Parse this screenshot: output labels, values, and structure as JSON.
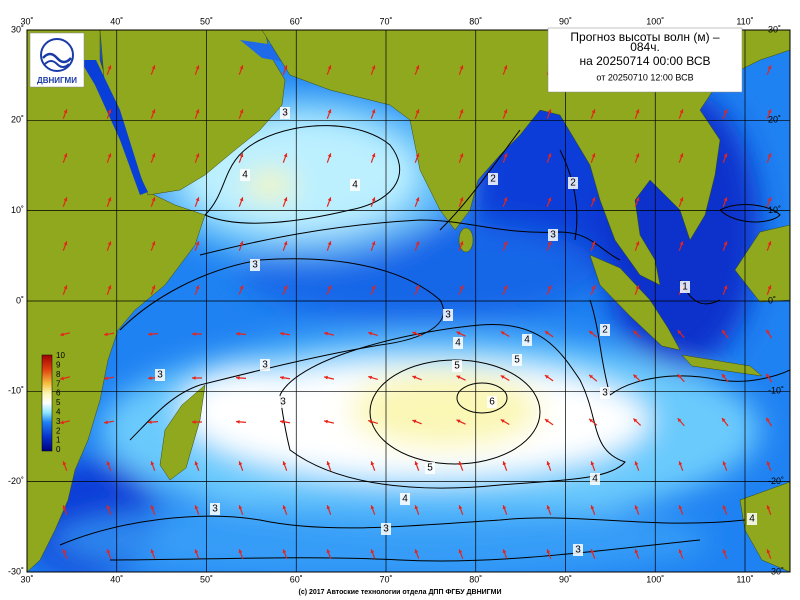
{
  "header": {
    "title_line1": "Прогноз высоты волн (м) –",
    "title_line2": "084ч.",
    "valid": "на 20250714 00:00 ВСВ",
    "issued": "от 20250710 12:00 ВСВ"
  },
  "logo": "ДВНИГМИ",
  "lon_labels": [
    "30˚",
    "40˚",
    "50˚",
    "60˚",
    "70˚",
    "80˚",
    "90˚",
    "100˚",
    "110˚"
  ],
  "lat_labels": [
    "30˚",
    "20˚",
    "10˚",
    "0˚",
    "-10˚",
    "-20˚",
    "-30˚"
  ],
  "colorbar": [
    "10",
    "9",
    "8",
    "7",
    "6",
    "5",
    "4",
    "3",
    "2",
    "1",
    "0"
  ],
  "contour_labels": [
    "3",
    "4",
    "4",
    "3",
    "3",
    "3",
    "3",
    "4",
    "4",
    "5",
    "5",
    "6",
    "5",
    "4",
    "4",
    "4",
    "3",
    "3",
    "3",
    "3",
    "3",
    "2",
    "2",
    "2",
    "1",
    "3"
  ],
  "footer": "(c) 2017 Автоские технологии отдела ДПП ФГБУ ДВНИГМИ"
}
